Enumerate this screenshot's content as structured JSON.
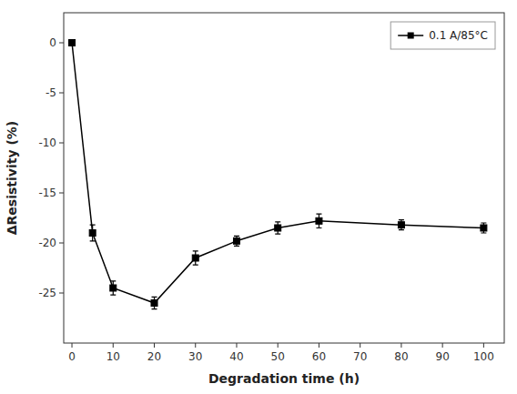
{
  "chart_data": {
    "type": "line",
    "xlabel": "Degradation time (h)",
    "ylabel": "ΔResistivity (%)",
    "x": [
      0,
      5,
      10,
      20,
      30,
      40,
      50,
      60,
      80,
      100
    ],
    "series": [
      {
        "name": "0.1 A/85°C",
        "color": "black",
        "marker": "square",
        "values": [
          0,
          -19.0,
          -24.5,
          -26.0,
          -21.5,
          -19.8,
          -18.5,
          -17.8,
          -18.2,
          -18.5
        ],
        "errors": [
          0.2,
          0.8,
          0.7,
          0.6,
          0.7,
          0.5,
          0.6,
          0.7,
          0.5,
          0.5
        ]
      }
    ],
    "xlim": [
      -2,
      105
    ],
    "ylim": [
      -30,
      3
    ],
    "xticks": [
      0,
      10,
      20,
      30,
      40,
      50,
      60,
      70,
      80,
      90,
      100
    ],
    "yticks": [
      0,
      -5,
      -10,
      -15,
      -20,
      -25
    ],
    "grid": false,
    "legend": "upper right"
  }
}
